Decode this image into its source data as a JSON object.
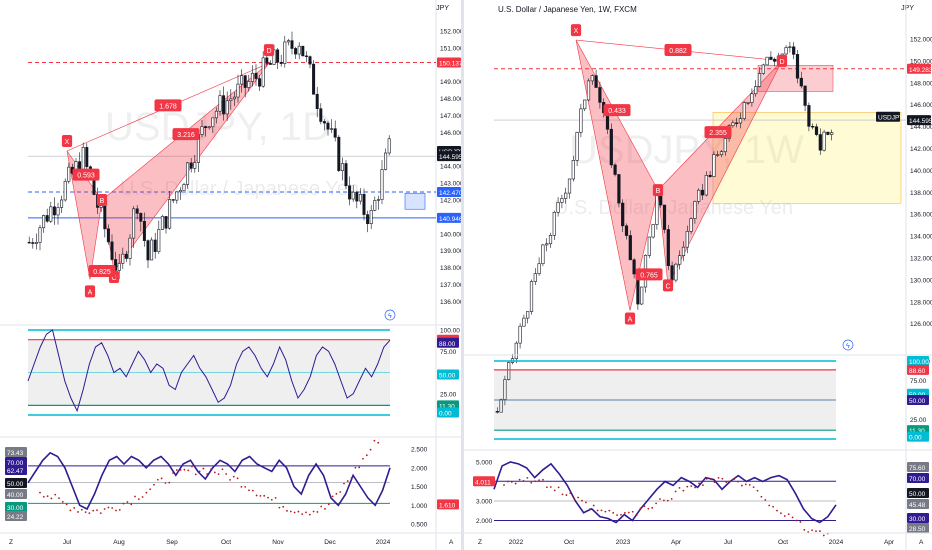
{
  "left": {
    "watermark": "USDJPY, 1D",
    "watermark_sub": "U.S. Dollar / Japanese Yen",
    "currency": "JPY",
    "price_ticks": [
      "152.000",
      "151.000",
      "150.000",
      "149.000",
      "148.000",
      "147.000",
      "146.000",
      "145.000",
      "144.000",
      "143.000",
      "142.000",
      "141.000",
      "140.000",
      "139.000",
      "138.000",
      "137.000",
      "136.000"
    ],
    "badges": [
      {
        "text": "150.137",
        "color": "#f23645"
      },
      {
        "text": "USDJPY",
        "color": "#131722"
      },
      {
        "text": "144.595",
        "color": "#131722"
      },
      {
        "text": "142.470",
        "color": "#2962ff"
      },
      {
        "text": "140.946",
        "color": "#2962ff"
      }
    ],
    "pattern_points": [
      "X",
      "A",
      "B",
      "C",
      "D"
    ],
    "ratios": [
      "0.593",
      "0.825",
      "1.678",
      "3.216"
    ],
    "rsi_ticks": [
      "100.00",
      "75.00",
      "50.00",
      "25.00",
      "0.00"
    ],
    "rsi_badges": [
      {
        "text": "88.60",
        "color": "#f23645"
      },
      {
        "text": "88.00",
        "color": "#311b92"
      },
      {
        "text": "50.00",
        "color": "#00bcd4"
      },
      {
        "text": "11.30",
        "color": "#089981"
      },
      {
        "text": "0.00",
        "color": "#00bcd4"
      }
    ],
    "osc_ticks": [
      "2.500",
      "2.000",
      "1.500",
      "1.000",
      "0.500"
    ],
    "osc_left_badges": [
      {
        "text": "73.43",
        "color": "#787b86"
      },
      {
        "text": "70.00",
        "color": "#311b92"
      },
      {
        "text": "62.47",
        "color": "#311b92"
      },
      {
        "text": "50.00",
        "color": "#131722"
      },
      {
        "text": "40.00",
        "color": "#787b86"
      },
      {
        "text": "30.00",
        "color": "#089981"
      },
      {
        "text": "24.22",
        "color": "#787b86"
      }
    ],
    "osc_right_badge": {
      "text": "1.610",
      "color": "#f23645"
    },
    "time_labels": [
      "Jul",
      "Aug",
      "Sep",
      "Oct",
      "Nov",
      "Dec",
      "2024"
    ],
    "z_label": "Z",
    "a_label": "A"
  },
  "right": {
    "title": "U.S. Dollar / Japanese Yen, 1W, FXCM",
    "watermark": "USDJPY, 1W",
    "watermark_sub": "U.S. Dollar / Japanese Yen",
    "currency": "JPY",
    "price_ticks": [
      "152.000",
      "150.000",
      "148.000",
      "146.000",
      "144.000",
      "142.000",
      "140.000",
      "138.000",
      "136.000",
      "134.000",
      "132.000",
      "130.000",
      "128.000",
      "126.000"
    ],
    "badges": [
      {
        "text": "149.283",
        "color": "#f23645"
      },
      {
        "text": "USDJPY",
        "color": "#131722"
      },
      {
        "text": "144.595",
        "color": "#131722"
      }
    ],
    "pattern_points": [
      "X",
      "A",
      "B",
      "C",
      "D"
    ],
    "ratios": [
      "0.882",
      "0.433",
      "2.355",
      "0.765"
    ],
    "rsi_ticks": [
      "100.00",
      "75.00",
      "50.00",
      "25.00",
      "0.00"
    ],
    "rsi_badges": [
      {
        "text": "100.00",
        "color": "#00bcd4"
      },
      {
        "text": "88.60",
        "color": "#f23645"
      },
      {
        "text": "50.00",
        "color": "#00bcd4"
      },
      {
        "text": "50.00",
        "color": "#311b92"
      },
      {
        "text": "11.30",
        "color": "#089981"
      },
      {
        "text": "0.00",
        "color": "#00bcd4"
      }
    ],
    "osc_ticks": [
      "5.000",
      "4.011",
      "3.000",
      "2.000"
    ],
    "osc_right_badges": [
      {
        "text": "75.60",
        "color": "#787b86"
      },
      {
        "text": "70.00",
        "color": "#311b92"
      },
      {
        "text": "50.00",
        "color": "#131722"
      },
      {
        "text": "45.48",
        "color": "#787b86"
      },
      {
        "text": "30.00",
        "color": "#311b92"
      },
      {
        "text": "28.50",
        "color": "#787b86"
      }
    ],
    "osc_left_badge": {
      "text": "4.011",
      "color": "#f23645"
    },
    "time_labels": [
      "2022",
      "Oct",
      "2023",
      "Apr",
      "Jul",
      "Oct",
      "2024",
      "Apr"
    ],
    "z_label": "Z",
    "a_label": "A"
  },
  "colors": {
    "up": "#131722",
    "pattern_fill": "rgba(242,54,69,0.32)",
    "pattern_line": "#f23645",
    "label_bg": "#f23645",
    "rsi_line": "#311b92",
    "blue": "#2962ff",
    "cyan": "#00bcd4",
    "green": "#089981",
    "yellow_zone": "rgba(255,235,59,0.22)",
    "red_zone": "rgba(242,54,69,0.25)"
  }
}
